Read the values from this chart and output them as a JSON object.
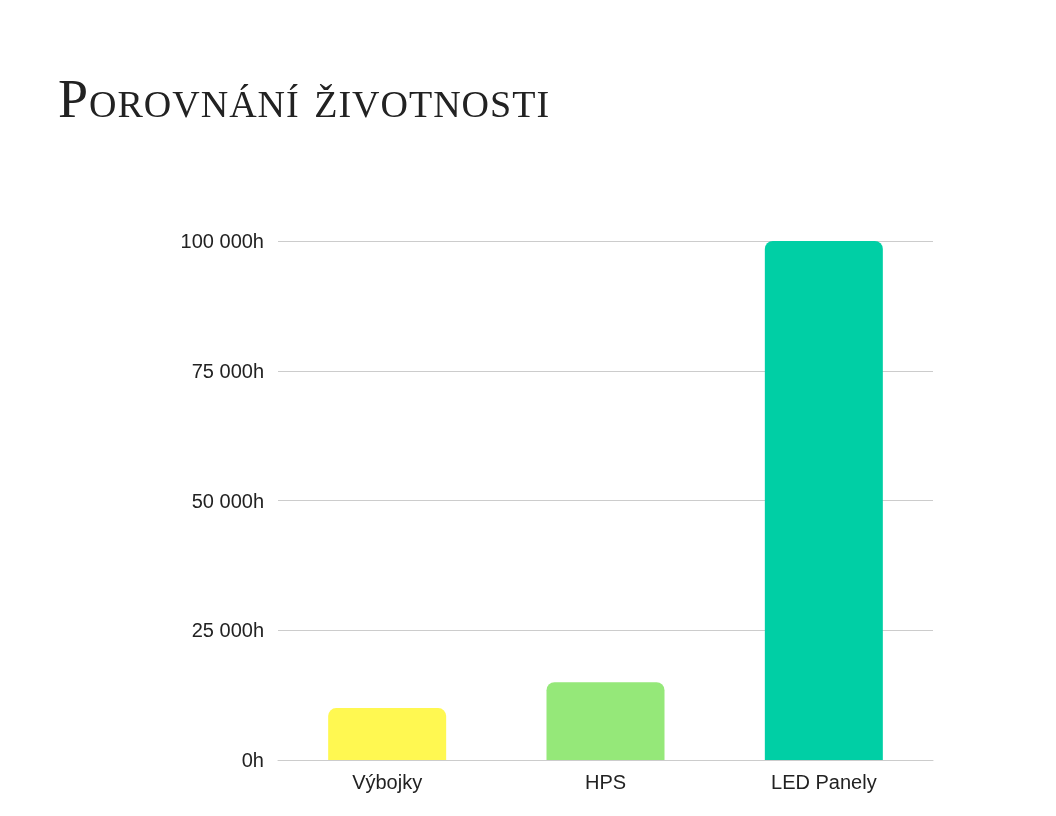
{
  "chart_data": {
    "type": "bar",
    "title": "Porovnání životnosti",
    "categories": [
      "Výbojky",
      "HPS",
      "LED Panely"
    ],
    "values": [
      10000,
      15000,
      100000
    ],
    "colors": [
      "#fff851",
      "#95e879",
      "#00cfa5"
    ],
    "ylim": [
      0,
      100000
    ],
    "yticks": [
      {
        "value": 0,
        "label": "0h"
      },
      {
        "value": 25000,
        "label": "25 000h"
      },
      {
        "value": 50000,
        "label": "50 000h"
      },
      {
        "value": 75000,
        "label": "75 000h"
      },
      {
        "value": 100000,
        "label": "100 000h"
      }
    ],
    "grid": "y"
  }
}
